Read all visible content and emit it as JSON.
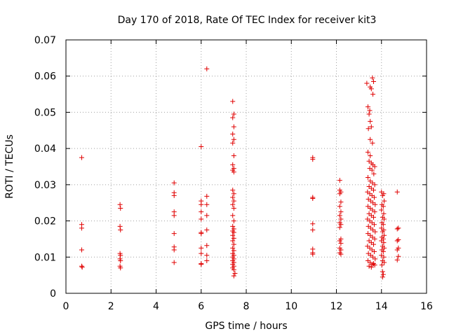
{
  "chart_data": {
    "type": "scatter",
    "title": "Day 170 of 2018, Rate Of TEC Index for receiver kit3",
    "xlabel": "GPS time / hours",
    "ylabel": "ROTI / TECUs",
    "xlim": [
      0,
      16
    ],
    "ylim": [
      0,
      0.07
    ],
    "xticks": [
      0,
      2,
      4,
      6,
      8,
      10,
      12,
      14,
      16
    ],
    "xtick_labels": [
      "0",
      "2",
      "4",
      "6",
      "8",
      "10",
      "12",
      "14",
      "16"
    ],
    "yticks": [
      0,
      0.01,
      0.02,
      0.03,
      0.04,
      0.05,
      0.06,
      0.07
    ],
    "ytick_labels": [
      "0",
      "0.01",
      "0.02",
      "0.03",
      "0.04",
      "0.05",
      "0.06",
      "0.07"
    ],
    "grid": true,
    "marker": "+",
    "color": "#e00000",
    "series": [
      {
        "name": "kit3",
        "points": [
          [
            0.7,
            0.0375
          ],
          [
            0.7,
            0.019
          ],
          [
            0.7,
            0.018
          ],
          [
            0.7,
            0.012
          ],
          [
            0.7,
            0.0075
          ],
          [
            0.72,
            0.0072
          ],
          [
            2.4,
            0.0245
          ],
          [
            2.42,
            0.0235
          ],
          [
            2.4,
            0.0185
          ],
          [
            2.42,
            0.0175
          ],
          [
            2.4,
            0.011
          ],
          [
            2.42,
            0.0105
          ],
          [
            2.4,
            0.0095
          ],
          [
            2.42,
            0.009
          ],
          [
            2.4,
            0.0075
          ],
          [
            2.42,
            0.007
          ],
          [
            4.8,
            0.0305
          ],
          [
            4.8,
            0.0278
          ],
          [
            4.8,
            0.027
          ],
          [
            4.8,
            0.0225
          ],
          [
            4.8,
            0.0215
          ],
          [
            4.8,
            0.0165
          ],
          [
            4.8,
            0.0128
          ],
          [
            4.8,
            0.012
          ],
          [
            4.8,
            0.0085
          ],
          [
            6.0,
            0.0405
          ],
          [
            6.0,
            0.0255
          ],
          [
            6.0,
            0.0245
          ],
          [
            6.0,
            0.0225
          ],
          [
            6.0,
            0.0205
          ],
          [
            6.0,
            0.0168
          ],
          [
            6.0,
            0.0165
          ],
          [
            6.0,
            0.0125
          ],
          [
            6.0,
            0.011
          ],
          [
            6.0,
            0.0082
          ],
          [
            6.0,
            0.008
          ],
          [
            6.25,
            0.062
          ],
          [
            6.25,
            0.0268
          ],
          [
            6.25,
            0.0245
          ],
          [
            6.25,
            0.0215
          ],
          [
            6.25,
            0.0175
          ],
          [
            6.25,
            0.0132
          ],
          [
            6.25,
            0.0105
          ],
          [
            6.25,
            0.009
          ],
          [
            7.4,
            0.053
          ],
          [
            7.45,
            0.0495
          ],
          [
            7.4,
            0.0485
          ],
          [
            7.45,
            0.046
          ],
          [
            7.4,
            0.044
          ],
          [
            7.45,
            0.0425
          ],
          [
            7.4,
            0.0415
          ],
          [
            7.45,
            0.038
          ],
          [
            7.4,
            0.0355
          ],
          [
            7.45,
            0.0345
          ],
          [
            7.4,
            0.034
          ],
          [
            7.45,
            0.0335
          ],
          [
            7.4,
            0.0285
          ],
          [
            7.45,
            0.0275
          ],
          [
            7.4,
            0.0265
          ],
          [
            7.45,
            0.0255
          ],
          [
            7.4,
            0.0245
          ],
          [
            7.45,
            0.0235
          ],
          [
            7.4,
            0.0215
          ],
          [
            7.45,
            0.02
          ],
          [
            7.4,
            0.0185
          ],
          [
            7.45,
            0.0178
          ],
          [
            7.4,
            0.0172
          ],
          [
            7.45,
            0.0168
          ],
          [
            7.4,
            0.016
          ],
          [
            7.45,
            0.0152
          ],
          [
            7.4,
            0.0145
          ],
          [
            7.45,
            0.0135
          ],
          [
            7.4,
            0.0125
          ],
          [
            7.45,
            0.0118
          ],
          [
            7.4,
            0.011
          ],
          [
            7.45,
            0.0105
          ],
          [
            7.4,
            0.01
          ],
          [
            7.45,
            0.0095
          ],
          [
            7.4,
            0.009
          ],
          [
            7.45,
            0.0085
          ],
          [
            7.4,
            0.008
          ],
          [
            7.45,
            0.0075
          ],
          [
            7.4,
            0.007
          ],
          [
            7.45,
            0.0065
          ],
          [
            7.5,
            0.0055
          ],
          [
            7.45,
            0.0048
          ],
          [
            10.95,
            0.0375
          ],
          [
            10.95,
            0.037
          ],
          [
            10.95,
            0.0265
          ],
          [
            10.95,
            0.0262
          ],
          [
            10.95,
            0.0192
          ],
          [
            10.95,
            0.0175
          ],
          [
            10.95,
            0.0122
          ],
          [
            10.95,
            0.0112
          ],
          [
            10.95,
            0.0108
          ],
          [
            12.15,
            0.0312
          ],
          [
            12.15,
            0.0285
          ],
          [
            12.2,
            0.028
          ],
          [
            12.15,
            0.0275
          ],
          [
            12.2,
            0.0252
          ],
          [
            12.15,
            0.024
          ],
          [
            12.2,
            0.0225
          ],
          [
            12.15,
            0.0215
          ],
          [
            12.2,
            0.0205
          ],
          [
            12.15,
            0.0195
          ],
          [
            12.2,
            0.019
          ],
          [
            12.15,
            0.0182
          ],
          [
            12.2,
            0.015
          ],
          [
            12.15,
            0.0145
          ],
          [
            12.2,
            0.0138
          ],
          [
            12.15,
            0.0125
          ],
          [
            12.2,
            0.012
          ],
          [
            12.15,
            0.0112
          ],
          [
            12.2,
            0.0108
          ],
          [
            13.35,
            0.058
          ],
          [
            13.5,
            0.057
          ],
          [
            13.6,
            0.0595
          ],
          [
            13.65,
            0.0585
          ],
          [
            13.55,
            0.0565
          ],
          [
            13.62,
            0.055
          ],
          [
            13.4,
            0.0515
          ],
          [
            13.48,
            0.0505
          ],
          [
            13.45,
            0.0495
          ],
          [
            13.5,
            0.0475
          ],
          [
            13.55,
            0.046
          ],
          [
            13.42,
            0.0455
          ],
          [
            13.5,
            0.0425
          ],
          [
            13.6,
            0.0415
          ],
          [
            13.4,
            0.039
          ],
          [
            13.5,
            0.038
          ],
          [
            13.45,
            0.0365
          ],
          [
            13.55,
            0.036
          ],
          [
            13.62,
            0.0355
          ],
          [
            13.7,
            0.035
          ],
          [
            13.48,
            0.0345
          ],
          [
            13.58,
            0.034
          ],
          [
            13.66,
            0.033
          ],
          [
            13.4,
            0.032
          ],
          [
            13.5,
            0.031
          ],
          [
            13.6,
            0.0305
          ],
          [
            13.7,
            0.03
          ],
          [
            13.45,
            0.0295
          ],
          [
            13.55,
            0.029
          ],
          [
            13.65,
            0.0285
          ],
          [
            13.38,
            0.028
          ],
          [
            13.48,
            0.0275
          ],
          [
            13.58,
            0.027
          ],
          [
            13.68,
            0.0265
          ],
          [
            13.42,
            0.026
          ],
          [
            13.52,
            0.0255
          ],
          [
            13.62,
            0.025
          ],
          [
            13.72,
            0.0245
          ],
          [
            13.4,
            0.024
          ],
          [
            13.5,
            0.0235
          ],
          [
            13.6,
            0.023
          ],
          [
            13.7,
            0.0225
          ],
          [
            13.45,
            0.022
          ],
          [
            13.55,
            0.0215
          ],
          [
            13.65,
            0.021
          ],
          [
            13.38,
            0.0205
          ],
          [
            13.48,
            0.02
          ],
          [
            13.58,
            0.0195
          ],
          [
            13.68,
            0.019
          ],
          [
            13.42,
            0.0185
          ],
          [
            13.52,
            0.018
          ],
          [
            13.62,
            0.0175
          ],
          [
            13.72,
            0.017
          ],
          [
            13.4,
            0.0165
          ],
          [
            13.5,
            0.016
          ],
          [
            13.6,
            0.0155
          ],
          [
            13.7,
            0.015
          ],
          [
            13.45,
            0.0145
          ],
          [
            13.55,
            0.014
          ],
          [
            13.65,
            0.0135
          ],
          [
            13.38,
            0.013
          ],
          [
            13.48,
            0.0125
          ],
          [
            13.58,
            0.012
          ],
          [
            13.68,
            0.0115
          ],
          [
            13.42,
            0.011
          ],
          [
            13.52,
            0.0105
          ],
          [
            13.62,
            0.01
          ],
          [
            13.72,
            0.0095
          ],
          [
            13.4,
            0.009
          ],
          [
            13.5,
            0.0085
          ],
          [
            13.6,
            0.008
          ],
          [
            13.7,
            0.0078
          ],
          [
            13.45,
            0.0075
          ],
          [
            13.55,
            0.0072
          ],
          [
            13.65,
            0.0082
          ],
          [
            14.0,
            0.028
          ],
          [
            14.1,
            0.0275
          ],
          [
            14.05,
            0.027
          ],
          [
            14.12,
            0.0255
          ],
          [
            14.02,
            0.0245
          ],
          [
            14.08,
            0.024
          ],
          [
            14.0,
            0.023
          ],
          [
            14.1,
            0.022
          ],
          [
            14.05,
            0.021
          ],
          [
            14.12,
            0.0205
          ],
          [
            14.02,
            0.0195
          ],
          [
            14.08,
            0.019
          ],
          [
            14.0,
            0.018
          ],
          [
            14.1,
            0.0175
          ],
          [
            14.05,
            0.017
          ],
          [
            14.12,
            0.016
          ],
          [
            14.02,
            0.0155
          ],
          [
            14.08,
            0.015
          ],
          [
            14.0,
            0.0145
          ],
          [
            14.1,
            0.014
          ],
          [
            14.05,
            0.013
          ],
          [
            14.12,
            0.0125
          ],
          [
            14.02,
            0.012
          ],
          [
            14.08,
            0.0115
          ],
          [
            14.0,
            0.0105
          ],
          [
            14.1,
            0.01
          ],
          [
            14.05,
            0.009
          ],
          [
            14.12,
            0.0085
          ],
          [
            14.02,
            0.0078
          ],
          [
            14.05,
            0.006
          ],
          [
            14.08,
            0.0052
          ],
          [
            14.05,
            0.0045
          ],
          [
            14.7,
            0.028
          ],
          [
            14.75,
            0.018
          ],
          [
            14.7,
            0.0178
          ],
          [
            14.75,
            0.0148
          ],
          [
            14.7,
            0.0145
          ],
          [
            14.75,
            0.0125
          ],
          [
            14.7,
            0.012
          ],
          [
            14.75,
            0.0102
          ],
          [
            14.7,
            0.0092
          ]
        ]
      }
    ]
  }
}
